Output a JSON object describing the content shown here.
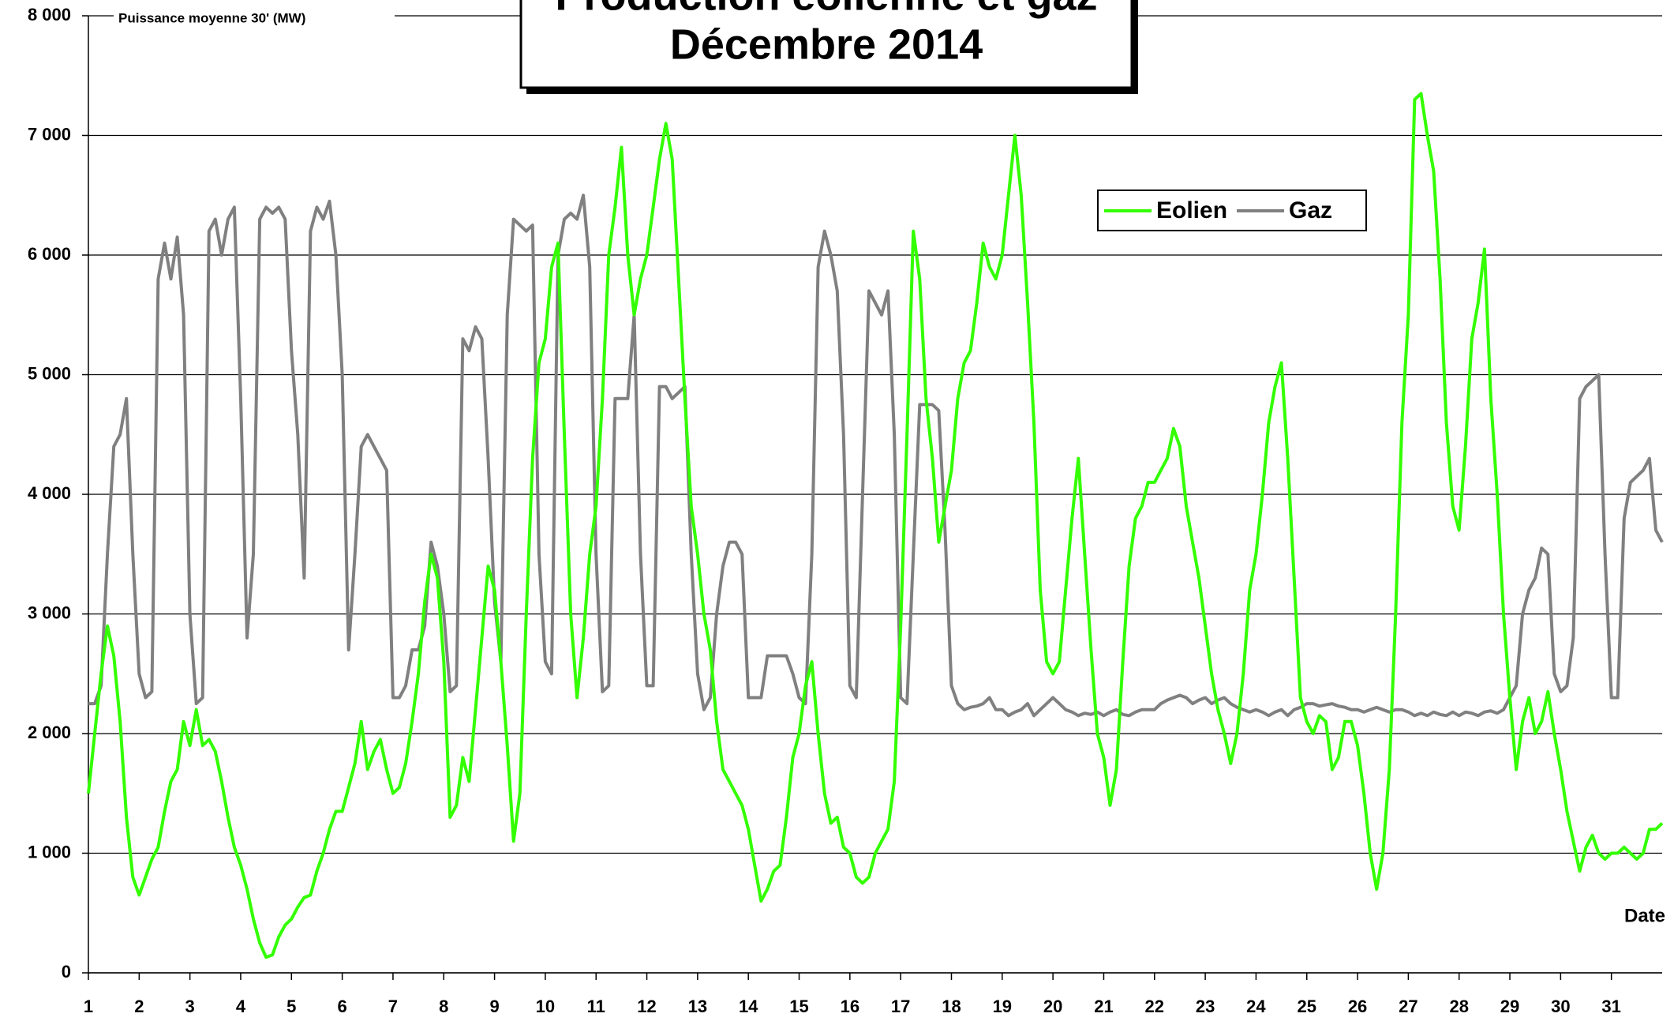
{
  "chart_data": {
    "type": "line",
    "title": "Production éolienne et gaz",
    "subtitle": "Décembre 2014",
    "y_label": "Puissance moyenne 30' (MW)",
    "x_label": "Date",
    "xlim": [
      1,
      32
    ],
    "xticks": [
      1,
      2,
      3,
      4,
      5,
      6,
      7,
      8,
      9,
      10,
      11,
      12,
      13,
      14,
      15,
      16,
      17,
      18,
      19,
      20,
      21,
      22,
      23,
      24,
      25,
      26,
      27,
      28,
      29,
      30,
      31
    ],
    "ylim": [
      0,
      8000
    ],
    "yticks": [
      0,
      {
        "value": 1000,
        "label": "1 000"
      },
      {
        "value": 2000,
        "label": "2 000"
      },
      {
        "value": 3000,
        "label": "3 000"
      },
      {
        "value": 4000,
        "label": "4 000"
      },
      {
        "value": 5000,
        "label": "5 000"
      },
      {
        "value": 6000,
        "label": "6 000"
      },
      {
        "value": 7000,
        "label": "7 000"
      },
      {
        "value": 8000,
        "label": "8 000"
      }
    ],
    "grid": true,
    "legend": "upper right",
    "x": [
      1,
      1.125,
      1.25,
      1.375,
      1.5,
      1.625,
      1.75,
      1.875,
      2,
      2.125,
      2.25,
      2.375,
      2.5,
      2.625,
      2.75,
      2.875,
      3,
      3.125,
      3.25,
      3.375,
      3.5,
      3.625,
      3.75,
      3.875,
      4,
      4.125,
      4.25,
      4.375,
      4.5,
      4.625,
      4.75,
      4.875,
      5,
      5.125,
      5.25,
      5.375,
      5.5,
      5.625,
      5.75,
      5.875,
      6,
      6.125,
      6.25,
      6.375,
      6.5,
      6.625,
      6.75,
      6.875,
      7,
      7.125,
      7.25,
      7.375,
      7.5,
      7.625,
      7.75,
      7.875,
      8,
      8.125,
      8.25,
      8.375,
      8.5,
      8.625,
      8.75,
      8.875,
      9,
      9.125,
      9.25,
      9.375,
      9.5,
      9.625,
      9.75,
      9.875,
      10,
      10.125,
      10.25,
      10.375,
      10.5,
      10.625,
      10.75,
      10.875,
      11,
      11.125,
      11.25,
      11.375,
      11.5,
      11.625,
      11.75,
      11.875,
      12,
      12.125,
      12.25,
      12.375,
      12.5,
      12.625,
      12.75,
      12.875,
      13,
      13.125,
      13.25,
      13.375,
      13.5,
      13.625,
      13.75,
      13.875,
      14,
      14.125,
      14.25,
      14.375,
      14.5,
      14.625,
      14.75,
      14.875,
      15,
      15.125,
      15.25,
      15.375,
      15.5,
      15.625,
      15.75,
      15.875,
      16,
      16.125,
      16.25,
      16.375,
      16.5,
      16.625,
      16.75,
      16.875,
      17,
      17.125,
      17.25,
      17.375,
      17.5,
      17.625,
      17.75,
      17.875,
      18,
      18.125,
      18.25,
      18.375,
      18.5,
      18.625,
      18.75,
      18.875,
      19,
      19.125,
      19.25,
      19.375,
      19.5,
      19.625,
      19.75,
      19.875,
      20,
      20.125,
      20.25,
      20.375,
      20.5,
      20.625,
      20.75,
      20.875,
      21,
      21.125,
      21.25,
      21.375,
      21.5,
      21.625,
      21.75,
      21.875,
      22,
      22.125,
      22.25,
      22.375,
      22.5,
      22.625,
      22.75,
      22.875,
      23,
      23.125,
      23.25,
      23.375,
      23.5,
      23.625,
      23.75,
      23.875,
      24,
      24.125,
      24.25,
      24.375,
      24.5,
      24.625,
      24.75,
      24.875,
      25,
      25.125,
      25.25,
      25.375,
      25.5,
      25.625,
      25.75,
      25.875,
      26,
      26.125,
      26.25,
      26.375,
      26.5,
      26.625,
      26.75,
      26.875,
      27,
      27.125,
      27.25,
      27.375,
      27.5,
      27.625,
      27.75,
      27.875,
      28,
      28.125,
      28.25,
      28.375,
      28.5,
      28.625,
      28.75,
      28.875,
      29,
      29.125,
      29.25,
      29.375,
      29.5,
      29.625,
      29.75,
      29.875,
      30,
      30.125,
      30.25,
      30.375,
      30.5,
      30.625,
      30.75,
      30.875,
      31,
      31.125,
      31.25,
      31.375,
      31.5,
      31.625,
      31.75,
      31.875,
      32
    ],
    "series": [
      {
        "name": "Eolien",
        "color": "#33ff00",
        "values": [
          1500,
          2000,
          2500,
          2900,
          2650,
          2100,
          1300,
          800,
          650,
          800,
          950,
          1050,
          1350,
          1600,
          1700,
          2100,
          1900,
          2200,
          1900,
          1950,
          1850,
          1600,
          1300,
          1050,
          900,
          700,
          450,
          250,
          130,
          150,
          300,
          400,
          450,
          550,
          630,
          650,
          850,
          1000,
          1200,
          1350,
          1350,
          1550,
          1750,
          2100,
          1700,
          1850,
          1950,
          1700,
          1500,
          1550,
          1750,
          2100,
          2500,
          3100,
          3500,
          3300,
          2600,
          1300,
          1400,
          1800,
          1600,
          2200,
          2800,
          3400,
          3200,
          2600,
          1900,
          1100,
          1500,
          3000,
          4300,
          5100,
          5300,
          5900,
          6100,
          4500,
          3000,
          2300,
          2800,
          3500,
          3900,
          4800,
          6000,
          6400,
          6900,
          6000,
          5500,
          5800,
          6000,
          6400,
          6800,
          7100,
          6800,
          5800,
          4800,
          3900,
          3500,
          3000,
          2700,
          2100,
          1700,
          1600,
          1500,
          1400,
          1200,
          900,
          600,
          700,
          850,
          900,
          1300,
          1800,
          2000,
          2400,
          2600,
          2000,
          1500,
          1250,
          1300,
          1050,
          1000,
          800,
          750,
          800,
          1000,
          1100,
          1200,
          1600,
          2900,
          4500,
          6200,
          5800,
          4800,
          4300,
          3600,
          3900,
          4200,
          4800,
          5100,
          5200,
          5600,
          6100,
          5900,
          5800,
          6000,
          6500,
          7000,
          6500,
          5600,
          4600,
          3200,
          2600,
          2500,
          2600,
          3200,
          3800,
          4300,
          3500,
          2700,
          2000,
          1800,
          1400,
          1700,
          2600,
          3400,
          3800,
          3900,
          4100,
          4100,
          4200,
          4300,
          4550,
          4400,
          3900,
          3600,
          3300,
          2900,
          2500,
          2200,
          2000,
          1750,
          2000,
          2500,
          3200,
          3500,
          4000,
          4600,
          4900,
          5100,
          4300,
          3300,
          2300,
          2100,
          2000,
          2150,
          2100,
          1700,
          1800,
          2100,
          2100,
          1900,
          1500,
          1000,
          700,
          1000,
          1700,
          3000,
          4600,
          5500,
          7300,
          7350,
          7000,
          6700,
          5800,
          4600,
          3900,
          3700,
          4400,
          5300,
          5600,
          6050,
          4800,
          4000,
          3000,
          2300,
          1700,
          2100,
          2300,
          2000,
          2100,
          2350,
          2000,
          1700,
          1350,
          1100,
          850,
          1050,
          1150,
          1000,
          950,
          1000,
          1000,
          1050,
          1000,
          950,
          1000,
          1200,
          1200,
          1250
        ]
      },
      {
        "name": "Gaz",
        "color": "#808080",
        "values": [
          2250,
          2250,
          2400,
          3500,
          4400,
          4500,
          4800,
          3500,
          2500,
          2300,
          2350,
          5800,
          6100,
          5800,
          6150,
          5500,
          3000,
          2250,
          2300,
          6200,
          6300,
          6000,
          6300,
          6400,
          4800,
          2800,
          3500,
          6300,
          6400,
          6350,
          6400,
          6300,
          5200,
          4500,
          3300,
          6200,
          6400,
          6300,
          6450,
          6000,
          5000,
          2700,
          3500,
          4400,
          4500,
          4400,
          4300,
          4200,
          2300,
          2300,
          2400,
          2700,
          2700,
          2900,
          3600,
          3400,
          3000,
          2350,
          2400,
          5300,
          5200,
          5400,
          5300,
          4300,
          3100,
          2600,
          5500,
          6300,
          6250,
          6200,
          6250,
          3500,
          2600,
          2500,
          6000,
          6300,
          6350,
          6300,
          6500,
          5900,
          3500,
          2350,
          2400,
          4800,
          4800,
          4800,
          5500,
          3500,
          2400,
          2400,
          4900,
          4900,
          4800,
          4850,
          4900,
          3500,
          2500,
          2200,
          2300,
          3000,
          3400,
          3600,
          3600,
          3500,
          2300,
          2300,
          2300,
          2650,
          2650,
          2650,
          2650,
          2500,
          2300,
          2250,
          3500,
          5900,
          6200,
          6000,
          5700,
          4500,
          2400,
          2300,
          4000,
          5700,
          5600,
          5500,
          5700,
          4500,
          2300,
          2250,
          3500,
          4750,
          4750,
          4750,
          4700,
          3700,
          2400,
          2250,
          2200,
          2220,
          2230,
          2250,
          2300,
          2200,
          2200,
          2150,
          2180,
          2200,
          2250,
          2150,
          2200,
          2250,
          2300,
          2250,
          2200,
          2180,
          2150,
          2170,
          2160,
          2180,
          2150,
          2180,
          2200,
          2160,
          2150,
          2180,
          2200,
          2200,
          2200,
          2250,
          2280,
          2300,
          2320,
          2300,
          2250,
          2280,
          2300,
          2250,
          2280,
          2300,
          2250,
          2220,
          2200,
          2180,
          2200,
          2180,
          2150,
          2180,
          2200,
          2150,
          2200,
          2220,
          2250,
          2250,
          2230,
          2240,
          2250,
          2230,
          2220,
          2200,
          2200,
          2180,
          2200,
          2220,
          2200,
          2180,
          2200,
          2200,
          2180,
          2150,
          2170,
          2150,
          2180,
          2160,
          2150,
          2180,
          2150,
          2180,
          2170,
          2150,
          2180,
          2190,
          2170,
          2200,
          2300,
          2400,
          3000,
          3200,
          3300,
          3550,
          3500,
          2500,
          2350,
          2400,
          2800,
          4800,
          4900,
          4950,
          5000,
          3500,
          2300,
          2300,
          3800,
          4100,
          4150,
          4200,
          4300,
          3700,
          3600
        ]
      }
    ]
  }
}
